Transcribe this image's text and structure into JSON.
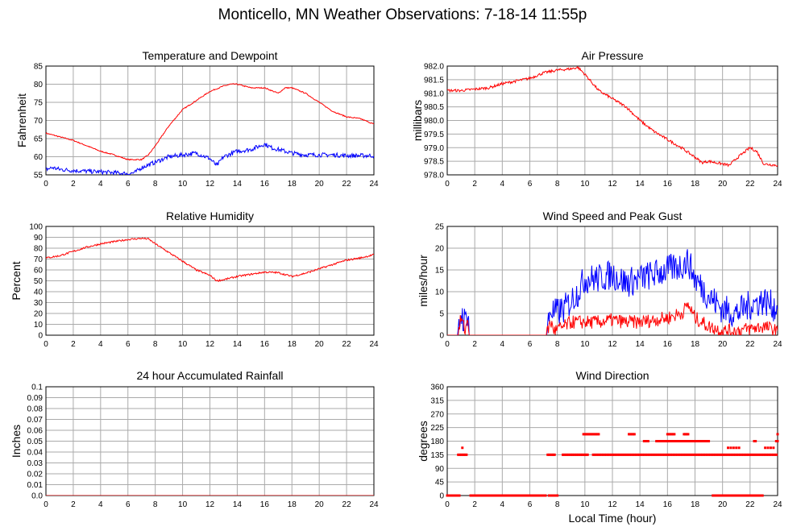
{
  "page": {
    "title": "Monticello, MN Weather Observations: 7-18-14 11:55p",
    "xlabel": "Local Time (hour)"
  },
  "chart_data": [
    {
      "id": "temp",
      "type": "line",
      "title": "Temperature and Dewpoint",
      "ylabel": "Fahrenheit",
      "xlim": [
        0,
        24
      ],
      "ylim": [
        55,
        85
      ],
      "yticks": [
        "55",
        "60",
        "65",
        "70",
        "75",
        "80",
        "85"
      ],
      "xticks": [
        "0",
        "2",
        "4",
        "6",
        "8",
        "10",
        "12",
        "14",
        "16",
        "18",
        "20",
        "22",
        "24"
      ],
      "grid": true,
      "series": [
        {
          "color": "#ff0000",
          "noise": 0.15,
          "x": [
            0,
            1,
            2,
            3,
            4,
            5,
            6,
            7,
            7.5,
            8,
            9,
            10,
            11,
            12,
            13,
            13.5,
            14,
            15,
            16,
            17,
            17.5,
            18,
            19,
            20,
            21,
            22,
            23,
            24
          ],
          "y": [
            66.5,
            65.5,
            64.5,
            63,
            61.5,
            60.5,
            59.2,
            59.2,
            60.5,
            63,
            68.5,
            73,
            75.5,
            78,
            79.5,
            80,
            80,
            79,
            79,
            77.5,
            79,
            79,
            77.5,
            75,
            72.5,
            71,
            70.5,
            69
          ]
        },
        {
          "color": "#0000ff",
          "noise": 0.6,
          "x": [
            0,
            0.5,
            1,
            2,
            3,
            4,
            5,
            6,
            6.5,
            7,
            8,
            9,
            10,
            11,
            12,
            12.5,
            13,
            14,
            15,
            16,
            16.5,
            17,
            18,
            19,
            20,
            21,
            22,
            23,
            24
          ],
          "y": [
            56.5,
            57,
            56.5,
            56.2,
            56,
            55.8,
            55.6,
            55.3,
            55.6,
            57,
            58.5,
            60,
            60.5,
            61,
            59.5,
            57.5,
            60,
            61.5,
            62,
            63.5,
            62.5,
            62,
            61,
            60.5,
            60.5,
            60.5,
            60.3,
            60.3,
            60.3
          ]
        }
      ]
    },
    {
      "id": "press",
      "type": "line",
      "title": "Air Pressure",
      "ylabel": "millibars",
      "xlim": [
        0,
        24
      ],
      "ylim": [
        978.0,
        982.0
      ],
      "yticks": [
        "978.0",
        "978.5",
        "979.0",
        "979.5",
        "980.0",
        "980.5",
        "981.0",
        "981.5",
        "982.0"
      ],
      "xticks": [
        "0",
        "2",
        "4",
        "6",
        "8",
        "10",
        "12",
        "14",
        "16",
        "18",
        "20",
        "22",
        "24"
      ],
      "grid": true,
      "series": [
        {
          "color": "#ff0000",
          "noise": 0.05,
          "x": [
            0,
            1,
            2,
            3,
            4,
            5,
            6,
            7,
            8,
            9,
            9.5,
            10,
            11,
            12,
            13,
            14,
            15,
            16,
            17,
            18,
            18.5,
            19,
            20,
            20.5,
            21,
            22,
            22.5,
            23,
            24
          ],
          "y": [
            981.1,
            981.1,
            981.15,
            981.2,
            981.35,
            981.45,
            981.55,
            981.75,
            981.85,
            981.9,
            981.95,
            981.7,
            981.1,
            980.8,
            980.5,
            980.0,
            979.6,
            979.3,
            979.0,
            978.65,
            978.45,
            978.5,
            978.4,
            978.35,
            978.6,
            979.0,
            978.85,
            978.4,
            978.35
          ]
        }
      ]
    },
    {
      "id": "rh",
      "type": "line",
      "title": "Relative Humidity",
      "ylabel": "Percent",
      "xlim": [
        0,
        24
      ],
      "ylim": [
        0,
        100
      ],
      "yticks": [
        "0",
        "10",
        "20",
        "30",
        "40",
        "50",
        "60",
        "70",
        "80",
        "90",
        "100"
      ],
      "xticks": [
        "0",
        "2",
        "4",
        "6",
        "8",
        "10",
        "12",
        "14",
        "16",
        "18",
        "20",
        "22",
        "24"
      ],
      "grid": true,
      "series": [
        {
          "color": "#ff0000",
          "noise": 0.8,
          "x": [
            0,
            1,
            2,
            3,
            4,
            5,
            6,
            7,
            7.5,
            8,
            9,
            10,
            11,
            12,
            12.5,
            13,
            14,
            15,
            16,
            17,
            18,
            19,
            20,
            21,
            22,
            23,
            24
          ],
          "y": [
            71,
            73,
            77,
            81,
            84,
            86,
            88,
            89,
            88.5,
            84,
            76,
            68,
            60,
            55,
            50,
            51,
            54,
            56,
            58,
            57.5,
            54,
            57,
            61,
            65,
            69,
            71,
            74
          ]
        }
      ]
    },
    {
      "id": "wind",
      "type": "line",
      "title": "Wind Speed and Peak Gust",
      "ylabel": "miles/hour",
      "xlim": [
        0,
        24
      ],
      "ylim": [
        0,
        25
      ],
      "yticks": [
        "0",
        "5",
        "10",
        "15",
        "20",
        "25"
      ],
      "xticks": [
        "0",
        "2",
        "4",
        "6",
        "8",
        "10",
        "12",
        "14",
        "16",
        "18",
        "20",
        "22",
        "24"
      ],
      "grid": true,
      "series": [
        {
          "color": "#0000ff",
          "noise": 3.5,
          "x": [
            0,
            0.8,
            1,
            1.3,
            1.5,
            1.6,
            7.2,
            7.5,
            7.8,
            8.5,
            9,
            9.5,
            10,
            11,
            12,
            13,
            14,
            15,
            16,
            17,
            17.5,
            18,
            19,
            20,
            21,
            22,
            23,
            24
          ],
          "y": [
            0,
            0,
            5,
            3,
            6,
            0,
            0,
            6,
            5,
            6,
            8,
            10,
            13,
            13,
            14,
            12,
            13,
            14,
            15,
            16,
            17,
            13,
            9,
            6,
            5,
            7,
            8,
            6
          ]
        },
        {
          "color": "#ff0000",
          "noise": 1.6,
          "x": [
            0,
            0.8,
            1,
            1.3,
            1.5,
            1.6,
            7.2,
            7.5,
            7.8,
            8.5,
            9,
            10,
            11,
            12,
            13,
            14,
            15,
            16,
            17,
            17.5,
            18,
            19,
            20,
            21,
            22,
            23,
            24
          ],
          "y": [
            0,
            0,
            4,
            1,
            4,
            0,
            0,
            3,
            1,
            2,
            3,
            3,
            3,
            3.5,
            3,
            3,
            3.5,
            4,
            5,
            7,
            4,
            2,
            1,
            1,
            1.5,
            2,
            1
          ]
        }
      ]
    },
    {
      "id": "rain",
      "type": "line",
      "title": "24 hour Accumulated Rainfall",
      "ylabel": "Inches",
      "xlim": [
        0,
        24
      ],
      "ylim": [
        0,
        0.1
      ],
      "yticks": [
        "0.0",
        "0.01",
        "0.02",
        "0.03",
        "0.04",
        "0.05",
        "0.06",
        "0.07",
        "0.08",
        "0.09",
        "0.1"
      ],
      "xticks": [
        "0",
        "2",
        "4",
        "6",
        "8",
        "10",
        "12",
        "14",
        "16",
        "18",
        "20",
        "22",
        "24"
      ],
      "grid": true,
      "series": [
        {
          "color": "#ff0000",
          "noise": 0,
          "x": [
            0,
            24
          ],
          "y": [
            0,
            0
          ]
        }
      ]
    },
    {
      "id": "dir",
      "type": "scatter",
      "title": "Wind Direction",
      "ylabel": "degrees",
      "xlim": [
        0,
        24
      ],
      "ylim": [
        0,
        360
      ],
      "yticks": [
        "0",
        "45",
        "90",
        "135",
        "180",
        "225",
        "270",
        "315",
        "360"
      ],
      "xticks": [
        "0",
        "2",
        "4",
        "6",
        "8",
        "10",
        "12",
        "14",
        "16",
        "18",
        "20",
        "22",
        "24"
      ],
      "grid": true,
      "series": [
        {
          "color": "#ff0000",
          "segments": [
            {
              "x0": 0,
              "x1": 0.9,
              "y": 0,
              "step": 0.08
            },
            {
              "x0": 0.8,
              "x1": 1.4,
              "y": 135,
              "step": 0.1
            },
            {
              "x0": 1.1,
              "x1": 1.15,
              "y": 158,
              "step": 0.1
            },
            {
              "x0": 1.7,
              "x1": 7.2,
              "y": 0,
              "step": 0.08
            },
            {
              "x0": 7.4,
              "x1": 8.1,
              "y": 0,
              "step": 0.12
            },
            {
              "x0": 7.3,
              "x1": 7.8,
              "y": 135,
              "step": 0.1
            },
            {
              "x0": 8.4,
              "x1": 10.2,
              "y": 135,
              "step": 0.1
            },
            {
              "x0": 9.9,
              "x1": 11.0,
              "y": 203,
              "step": 0.1
            },
            {
              "x0": 10.6,
              "x1": 24,
              "y": 135,
              "step": 0.12
            },
            {
              "x0": 13.2,
              "x1": 13.6,
              "y": 203,
              "step": 0.1
            },
            {
              "x0": 14.3,
              "x1": 14.6,
              "y": 180,
              "step": 0.1
            },
            {
              "x0": 15.2,
              "x1": 19.0,
              "y": 180,
              "step": 0.1
            },
            {
              "x0": 16.0,
              "x1": 16.5,
              "y": 203,
              "step": 0.1
            },
            {
              "x0": 17.2,
              "x1": 17.5,
              "y": 203,
              "step": 0.1
            },
            {
              "x0": 19.3,
              "x1": 22.9,
              "y": 0,
              "step": 0.15
            },
            {
              "x0": 20.4,
              "x1": 21.2,
              "y": 158,
              "step": 0.2
            },
            {
              "x0": 22.3,
              "x1": 22.4,
              "y": 180,
              "step": 0.1
            },
            {
              "x0": 23.1,
              "x1": 23.7,
              "y": 158,
              "step": 0.2
            },
            {
              "x0": 23.9,
              "x1": 24,
              "y": 180,
              "step": 0.1
            },
            {
              "x0": 24,
              "x1": 24,
              "y": 203,
              "step": 0.1
            }
          ]
        }
      ]
    }
  ]
}
